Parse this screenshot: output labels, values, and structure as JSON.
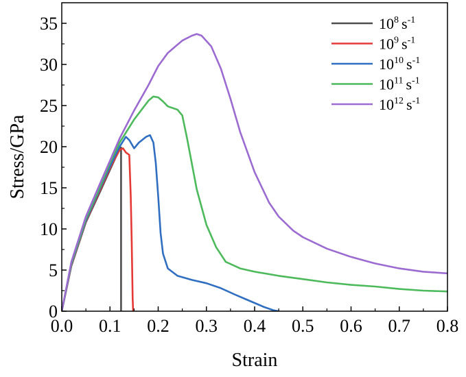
{
  "chart_data": {
    "type": "line",
    "xlabel": "Strain",
    "ylabel": "Stress/GPa",
    "xlim": [
      0,
      0.8
    ],
    "ylim": [
      0,
      37.5
    ],
    "xticks": [
      "0.0",
      "0.1",
      "0.2",
      "0.3",
      "0.4",
      "0.5",
      "0.6",
      "0.7",
      "0.8"
    ],
    "xtick_values": [
      0,
      0.1,
      0.2,
      0.3,
      0.4,
      0.5,
      0.6,
      0.7,
      0.8
    ],
    "yticks": [
      "0",
      "5",
      "10",
      "15",
      "20",
      "25",
      "30",
      "35"
    ],
    "ytick_values": [
      0,
      5,
      10,
      15,
      20,
      25,
      30,
      35
    ],
    "grid": false,
    "legend_position": "top-right",
    "series": [
      {
        "name": "10^8 s^-1",
        "legend": {
          "base": "10",
          "exp": "8",
          "unit": "s",
          "unit_exp": "-1"
        },
        "color": "#4d4d4d",
        "x": [
          0.0,
          0.02,
          0.05,
          0.08,
          0.1,
          0.115,
          0.122,
          0.123,
          0.123
        ],
        "y": [
          0.0,
          5.5,
          10.8,
          14.6,
          17.2,
          19.1,
          19.9,
          19.9,
          0.0
        ]
      },
      {
        "name": "10^9 s^-1",
        "legend": {
          "base": "10",
          "exp": "9",
          "unit": "s",
          "unit_exp": "-1"
        },
        "color": "#e53935",
        "x": [
          0.0,
          0.02,
          0.05,
          0.08,
          0.1,
          0.12,
          0.127,
          0.133,
          0.14,
          0.143,
          0.145,
          0.146,
          0.147,
          0.148
        ],
        "y": [
          0.0,
          5.6,
          10.9,
          14.8,
          17.4,
          19.6,
          19.8,
          19.3,
          19.0,
          14.0,
          8.5,
          5.0,
          1.5,
          0.0
        ]
      },
      {
        "name": "10^10 s^-1",
        "legend": {
          "base": "10",
          "exp": "10",
          "unit": "s",
          "unit_exp": "-1"
        },
        "color": "#2f6ec0",
        "x": [
          0.0,
          0.02,
          0.05,
          0.08,
          0.1,
          0.12,
          0.133,
          0.14,
          0.15,
          0.16,
          0.175,
          0.183,
          0.19,
          0.195,
          0.2,
          0.205,
          0.21,
          0.22,
          0.24,
          0.27,
          0.3,
          0.33,
          0.36,
          0.38,
          0.4,
          0.42,
          0.44,
          0.45
        ],
        "y": [
          0.0,
          5.7,
          11.0,
          15.0,
          17.6,
          20.0,
          21.2,
          20.8,
          19.8,
          20.5,
          21.2,
          21.4,
          20.5,
          18.0,
          14.0,
          9.5,
          7.0,
          5.2,
          4.3,
          3.8,
          3.4,
          2.8,
          2.0,
          1.5,
          1.0,
          0.5,
          0.1,
          0.0
        ]
      },
      {
        "name": "10^11 s^-1",
        "legend": {
          "base": "10",
          "exp": "11",
          "unit": "s",
          "unit_exp": "-1"
        },
        "color": "#4cba5b",
        "x": [
          0.0,
          0.02,
          0.05,
          0.08,
          0.1,
          0.12,
          0.15,
          0.18,
          0.19,
          0.2,
          0.21,
          0.22,
          0.24,
          0.25,
          0.26,
          0.28,
          0.3,
          0.32,
          0.34,
          0.37,
          0.4,
          0.45,
          0.5,
          0.55,
          0.6,
          0.65,
          0.7,
          0.75,
          0.8
        ],
        "y": [
          0.0,
          5.8,
          11.2,
          15.2,
          18.0,
          20.5,
          23.3,
          25.6,
          26.1,
          26.0,
          25.5,
          24.9,
          24.5,
          23.8,
          21.0,
          14.8,
          10.5,
          7.8,
          6.0,
          5.2,
          4.8,
          4.3,
          3.9,
          3.5,
          3.2,
          3.0,
          2.7,
          2.5,
          2.4
        ]
      },
      {
        "name": "10^12 s^-1",
        "legend": {
          "base": "10",
          "exp": "12",
          "unit": "s",
          "unit_exp": "-1"
        },
        "color": "#9b6bd1",
        "x": [
          0.0,
          0.02,
          0.05,
          0.08,
          0.1,
          0.12,
          0.15,
          0.18,
          0.2,
          0.22,
          0.25,
          0.27,
          0.28,
          0.29,
          0.31,
          0.33,
          0.35,
          0.37,
          0.4,
          0.43,
          0.45,
          0.48,
          0.5,
          0.55,
          0.6,
          0.65,
          0.7,
          0.75,
          0.8
        ],
        "y": [
          0.0,
          6.0,
          11.5,
          15.6,
          18.3,
          21.0,
          24.4,
          27.5,
          29.8,
          31.4,
          32.9,
          33.5,
          33.7,
          33.5,
          32.2,
          29.5,
          25.8,
          21.8,
          16.9,
          13.2,
          11.5,
          9.8,
          9.0,
          7.6,
          6.6,
          5.8,
          5.2,
          4.8,
          4.6
        ]
      }
    ]
  }
}
